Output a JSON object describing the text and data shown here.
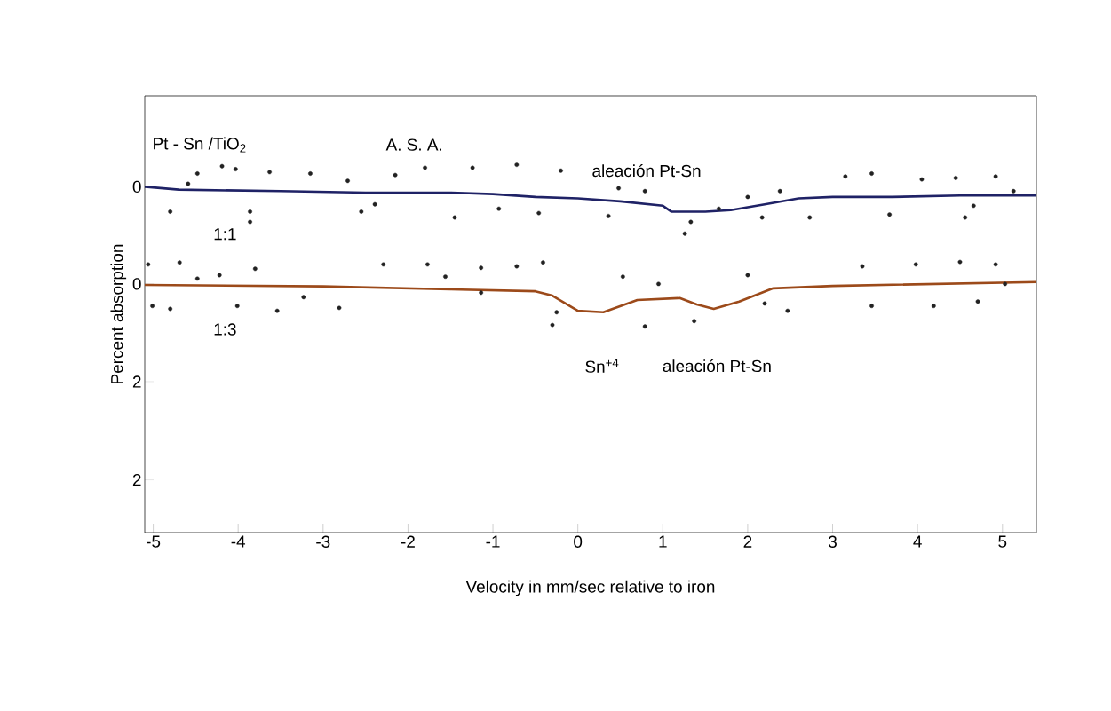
{
  "chart_data": [
    {
      "type": "line",
      "xlabel": "Velocity in mm/sec relative to iron",
      "ylabel": "Percent  absorption",
      "xlim": [
        -5.1,
        5.4
      ],
      "xticks": [
        -5,
        -4,
        -3,
        -2,
        -1,
        0,
        1,
        2,
        3,
        4,
        5
      ],
      "ylim": [
        2.36,
        -0.62
      ],
      "yticks": [
        0,
        2
      ],
      "legend": false,
      "line_style": "solid",
      "annotations": [
        "Pt - Sn /TiO$_{2}$",
        "A. S. A.",
        "aleación Pt-Sn"
      ],
      "series": [
        {
          "type": "scatter",
          "marker": "circle",
          "color": "#222222",
          "x": [
            -4.48,
            -4.19,
            -4.03,
            -3.63,
            -3.15,
            -4.59,
            -2.71,
            -2.15,
            -1.8,
            -1.24,
            -0.72,
            -0.2,
            -4.8,
            -3.86,
            -3.86,
            -2.55,
            -2.39,
            -1.45,
            -0.93,
            -0.46,
            0.36,
            0.48,
            1.26,
            1.33,
            0.79,
            1.66,
            2.0,
            2.17,
            2.38,
            2.73,
            3.15,
            3.46,
            3.67,
            4.05,
            4.45,
            4.56,
            4.66,
            4.92,
            5.13
          ],
          "values": [
            -0.09,
            -0.14,
            -0.12,
            -0.1,
            -0.09,
            -0.02,
            -0.04,
            -0.08,
            -0.13,
            -0.13,
            -0.15,
            -0.11,
            0.17,
            0.17,
            0.24,
            0.17,
            0.12,
            0.21,
            0.15,
            0.18,
            0.2,
            0.01,
            0.32,
            0.24,
            0.03,
            0.15,
            0.07,
            0.21,
            0.03,
            0.21,
            -0.07,
            -0.09,
            0.19,
            -0.05,
            -0.06,
            0.21,
            0.13,
            -0.07,
            0.03
          ]
        },
        {
          "name": "1:1",
          "type": "line",
          "color": "#1f2266",
          "x": [
            -5.1,
            -4.7,
            -3.5,
            -2.5,
            -1.5,
            -1.0,
            -0.5,
            0.0,
            0.5,
            1.0,
            1.1,
            1.5,
            1.8,
            2.2,
            2.6,
            3.0,
            3.7,
            4.5,
            5.4
          ],
          "values": [
            0.0,
            0.02,
            0.03,
            0.04,
            0.04,
            0.05,
            0.07,
            0.08,
            0.1,
            0.13,
            0.17,
            0.17,
            0.16,
            0.12,
            0.08,
            0.07,
            0.07,
            0.06,
            0.06
          ]
        }
      ]
    },
    {
      "type": "line",
      "xlim": [
        -5.1,
        5.4
      ],
      "xticks": [
        -5,
        -4,
        -3,
        -2,
        -1,
        0,
        1,
        2,
        3,
        4,
        5
      ],
      "ylim": [
        5.09,
        -3.85
      ],
      "yticks": [
        0,
        2
      ],
      "tick_labels": "y",
      "legend": false,
      "line_style": "solid",
      "annotations": [
        "Sn$^{+4}$",
        "aleación Pt-Sn"
      ],
      "series": [
        {
          "type": "scatter",
          "marker": "circle",
          "color": "#222222",
          "x": [
            -5.06,
            -4.69,
            -4.48,
            -4.22,
            -3.8,
            -5.01,
            -4.8,
            -4.01,
            -3.54,
            -2.81,
            -3.23,
            -2.29,
            -1.77,
            -1.14,
            -0.72,
            -0.41,
            -1.56,
            -1.14,
            -0.25,
            -0.3,
            0.53,
            0.79,
            0.95,
            1.37,
            2.0,
            2.2,
            2.47,
            3.35,
            3.46,
            3.98,
            4.19,
            4.5,
            4.71,
            4.92,
            5.03
          ],
          "values": [
            -0.4,
            -0.44,
            -0.11,
            -0.18,
            -0.31,
            0.45,
            0.51,
            0.45,
            0.55,
            0.49,
            0.27,
            -0.4,
            -0.4,
            -0.33,
            -0.36,
            -0.44,
            -0.15,
            0.18,
            0.58,
            0.84,
            -0.15,
            0.87,
            0.0,
            0.76,
            -0.18,
            0.4,
            0.55,
            -0.36,
            0.45,
            -0.4,
            0.45,
            -0.45,
            0.36,
            -0.4,
            0.0
          ]
        },
        {
          "name": "1:3",
          "type": "line",
          "color": "#9c4a1a",
          "x": [
            -5.1,
            -3.0,
            -1.5,
            -0.5,
            -0.3,
            0.0,
            0.3,
            0.7,
            1.2,
            1.4,
            1.6,
            1.9,
            2.3,
            3.0,
            5.4
          ],
          "values": [
            0.02,
            0.05,
            0.11,
            0.15,
            0.24,
            0.55,
            0.58,
            0.33,
            0.29,
            0.42,
            0.51,
            0.36,
            0.09,
            0.04,
            -0.04
          ]
        }
      ]
    }
  ]
}
